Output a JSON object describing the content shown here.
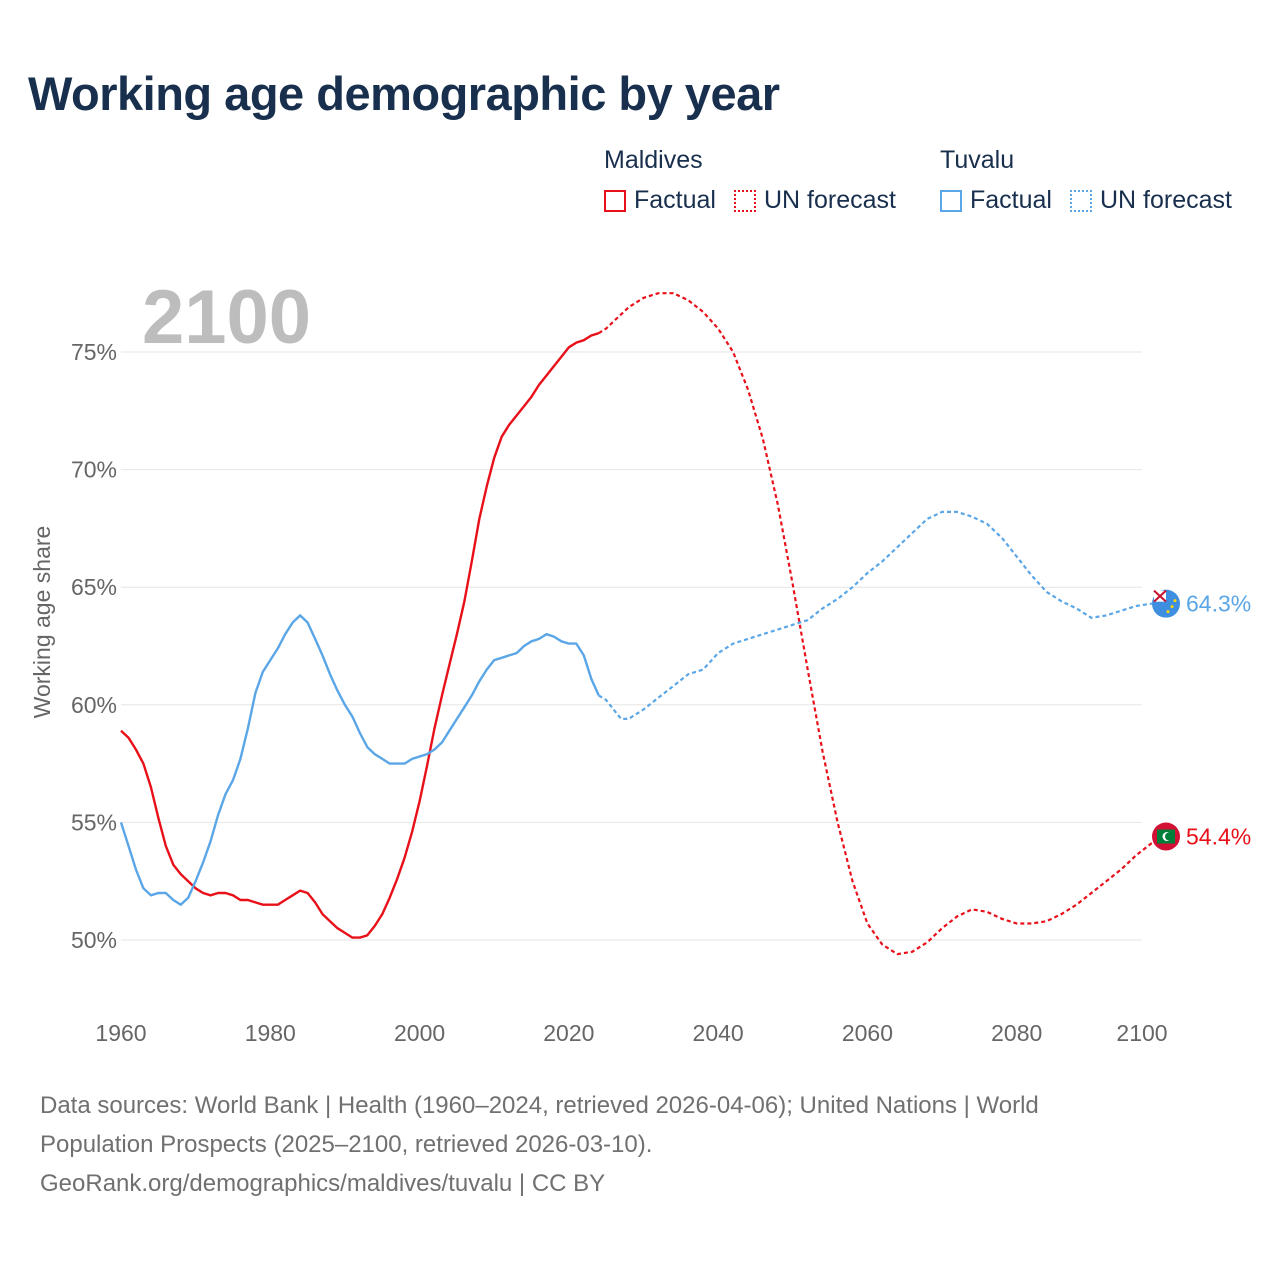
{
  "title": "Working age demographic by year",
  "legend": {
    "groups": [
      {
        "name": "Maldives",
        "factual_label": "Factual",
        "forecast_label": "UN forecast",
        "color": "#e8111a"
      },
      {
        "name": "Tuvalu",
        "factual_label": "Factual",
        "forecast_label": "UN forecast",
        "color": "#5aa6e6"
      }
    ]
  },
  "footer": {
    "line1": "Data sources: World Bank | Health (1960–2024, retrieved 2026-04-06); United Nations | World",
    "line2": "Population Prospects (2025–2100, retrieved 2026-03-10).",
    "line3": "GeoRank.org/demographics/maldives/tuvalu | CC BY"
  },
  "chart_data": {
    "type": "line",
    "title": "Working age demographic by year",
    "xlabel": "",
    "ylabel": "Working age share",
    "year_watermark": "2100",
    "xlim": [
      1960,
      2100
    ],
    "ylim": [
      47,
      77.5
    ],
    "x_ticks": [
      1960,
      1980,
      2000,
      2020,
      2040,
      2060,
      2080,
      2100
    ],
    "x_tick_labels": [
      "1960",
      "1980",
      "2000",
      "2020",
      "2040",
      "2060",
      "2080",
      "2100"
    ],
    "y_ticks": [
      50,
      55,
      60,
      65,
      70,
      75
    ],
    "y_tick_labels": [
      "50%",
      "55%",
      "60%",
      "65%",
      "70%",
      "75%"
    ],
    "grid": true,
    "factual_end_year": 2024,
    "series": [
      {
        "name": "Maldives",
        "color": "#e8111a",
        "end_label": "54.4%",
        "flag_icon": "maldives-flag-icon",
        "points": [
          [
            1960,
            58.9
          ],
          [
            1961,
            58.6
          ],
          [
            1962,
            58.1
          ],
          [
            1963,
            57.5
          ],
          [
            1964,
            56.5
          ],
          [
            1965,
            55.2
          ],
          [
            1966,
            54.0
          ],
          [
            1967,
            53.2
          ],
          [
            1968,
            52.8
          ],
          [
            1969,
            52.5
          ],
          [
            1970,
            52.2
          ],
          [
            1971,
            52.0
          ],
          [
            1972,
            51.9
          ],
          [
            1973,
            52.0
          ],
          [
            1974,
            52.0
          ],
          [
            1975,
            51.9
          ],
          [
            1976,
            51.7
          ],
          [
            1977,
            51.7
          ],
          [
            1978,
            51.6
          ],
          [
            1979,
            51.5
          ],
          [
            1980,
            51.5
          ],
          [
            1981,
            51.5
          ],
          [
            1982,
            51.7
          ],
          [
            1983,
            51.9
          ],
          [
            1984,
            52.1
          ],
          [
            1985,
            52.0
          ],
          [
            1986,
            51.6
          ],
          [
            1987,
            51.1
          ],
          [
            1988,
            50.8
          ],
          [
            1989,
            50.5
          ],
          [
            1990,
            50.3
          ],
          [
            1991,
            50.1
          ],
          [
            1992,
            50.1
          ],
          [
            1993,
            50.2
          ],
          [
            1994,
            50.6
          ],
          [
            1995,
            51.1
          ],
          [
            1996,
            51.8
          ],
          [
            1997,
            52.6
          ],
          [
            1998,
            53.5
          ],
          [
            1999,
            54.6
          ],
          [
            2000,
            55.9
          ],
          [
            2001,
            57.4
          ],
          [
            2002,
            59.0
          ],
          [
            2003,
            60.4
          ],
          [
            2004,
            61.7
          ],
          [
            2005,
            63.0
          ],
          [
            2006,
            64.4
          ],
          [
            2007,
            66.1
          ],
          [
            2008,
            67.9
          ],
          [
            2009,
            69.3
          ],
          [
            2010,
            70.5
          ],
          [
            2011,
            71.4
          ],
          [
            2012,
            71.9
          ],
          [
            2013,
            72.3
          ],
          [
            2014,
            72.7
          ],
          [
            2015,
            73.1
          ],
          [
            2016,
            73.6
          ],
          [
            2017,
            74.0
          ],
          [
            2018,
            74.4
          ],
          [
            2019,
            74.8
          ],
          [
            2020,
            75.2
          ],
          [
            2021,
            75.4
          ],
          [
            2022,
            75.5
          ],
          [
            2023,
            75.7
          ],
          [
            2024,
            75.8
          ],
          [
            2025,
            76.0
          ],
          [
            2026,
            76.3
          ],
          [
            2027,
            76.6
          ],
          [
            2028,
            76.9
          ],
          [
            2029,
            77.1
          ],
          [
            2030,
            77.3
          ],
          [
            2032,
            77.5
          ],
          [
            2034,
            77.5
          ],
          [
            2036,
            77.2
          ],
          [
            2038,
            76.7
          ],
          [
            2040,
            76.0
          ],
          [
            2042,
            75.0
          ],
          [
            2044,
            73.4
          ],
          [
            2046,
            71.3
          ],
          [
            2048,
            68.5
          ],
          [
            2050,
            65.1
          ],
          [
            2052,
            61.5
          ],
          [
            2054,
            58.0
          ],
          [
            2056,
            55.0
          ],
          [
            2058,
            52.5
          ],
          [
            2060,
            50.7
          ],
          [
            2062,
            49.8
          ],
          [
            2064,
            49.4
          ],
          [
            2066,
            49.5
          ],
          [
            2068,
            49.9
          ],
          [
            2070,
            50.5
          ],
          [
            2072,
            51.0
          ],
          [
            2074,
            51.3
          ],
          [
            2076,
            51.2
          ],
          [
            2078,
            50.9
          ],
          [
            2080,
            50.7
          ],
          [
            2082,
            50.7
          ],
          [
            2084,
            50.8
          ],
          [
            2086,
            51.1
          ],
          [
            2088,
            51.5
          ],
          [
            2090,
            52.0
          ],
          [
            2092,
            52.5
          ],
          [
            2094,
            53.0
          ],
          [
            2096,
            53.6
          ],
          [
            2098,
            54.1
          ],
          [
            2100,
            54.4
          ]
        ]
      },
      {
        "name": "Tuvalu",
        "color": "#5aa6e6",
        "end_label": "64.3%",
        "flag_icon": "tuvalu-flag-icon",
        "points": [
          [
            1960,
            55.0
          ],
          [
            1961,
            54.0
          ],
          [
            1962,
            53.0
          ],
          [
            1963,
            52.2
          ],
          [
            1964,
            51.9
          ],
          [
            1965,
            52.0
          ],
          [
            1966,
            52.0
          ],
          [
            1967,
            51.7
          ],
          [
            1968,
            51.5
          ],
          [
            1969,
            51.8
          ],
          [
            1970,
            52.5
          ],
          [
            1971,
            53.3
          ],
          [
            1972,
            54.2
          ],
          [
            1973,
            55.3
          ],
          [
            1974,
            56.2
          ],
          [
            1975,
            56.8
          ],
          [
            1976,
            57.7
          ],
          [
            1977,
            59.0
          ],
          [
            1978,
            60.5
          ],
          [
            1979,
            61.4
          ],
          [
            1980,
            61.9
          ],
          [
            1981,
            62.4
          ],
          [
            1982,
            63.0
          ],
          [
            1983,
            63.5
          ],
          [
            1984,
            63.8
          ],
          [
            1985,
            63.5
          ],
          [
            1986,
            62.8
          ],
          [
            1987,
            62.1
          ],
          [
            1988,
            61.3
          ],
          [
            1989,
            60.6
          ],
          [
            1990,
            60.0
          ],
          [
            1991,
            59.5
          ],
          [
            1992,
            58.8
          ],
          [
            1993,
            58.2
          ],
          [
            1994,
            57.9
          ],
          [
            1995,
            57.7
          ],
          [
            1996,
            57.5
          ],
          [
            1997,
            57.5
          ],
          [
            1998,
            57.5
          ],
          [
            1999,
            57.7
          ],
          [
            2000,
            57.8
          ],
          [
            2001,
            57.9
          ],
          [
            2002,
            58.1
          ],
          [
            2003,
            58.4
          ],
          [
            2004,
            58.9
          ],
          [
            2005,
            59.4
          ],
          [
            2006,
            59.9
          ],
          [
            2007,
            60.4
          ],
          [
            2008,
            61.0
          ],
          [
            2009,
            61.5
          ],
          [
            2010,
            61.9
          ],
          [
            2011,
            62.0
          ],
          [
            2012,
            62.1
          ],
          [
            2013,
            62.2
          ],
          [
            2014,
            62.5
          ],
          [
            2015,
            62.7
          ],
          [
            2016,
            62.8
          ],
          [
            2017,
            63.0
          ],
          [
            2018,
            62.9
          ],
          [
            2019,
            62.7
          ],
          [
            2020,
            62.6
          ],
          [
            2021,
            62.6
          ],
          [
            2022,
            62.1
          ],
          [
            2023,
            61.1
          ],
          [
            2024,
            60.4
          ],
          [
            2025,
            60.2
          ],
          [
            2026,
            59.8
          ],
          [
            2027,
            59.4
          ],
          [
            2028,
            59.4
          ],
          [
            2029,
            59.6
          ],
          [
            2030,
            59.8
          ],
          [
            2032,
            60.3
          ],
          [
            2034,
            60.8
          ],
          [
            2036,
            61.3
          ],
          [
            2038,
            61.5
          ],
          [
            2040,
            62.2
          ],
          [
            2042,
            62.6
          ],
          [
            2044,
            62.8
          ],
          [
            2046,
            63.0
          ],
          [
            2048,
            63.2
          ],
          [
            2050,
            63.4
          ],
          [
            2052,
            63.6
          ],
          [
            2054,
            64.1
          ],
          [
            2056,
            64.5
          ],
          [
            2058,
            65.0
          ],
          [
            2060,
            65.6
          ],
          [
            2062,
            66.1
          ],
          [
            2064,
            66.7
          ],
          [
            2066,
            67.3
          ],
          [
            2068,
            67.9
          ],
          [
            2070,
            68.2
          ],
          [
            2072,
            68.2
          ],
          [
            2074,
            68.0
          ],
          [
            2076,
            67.7
          ],
          [
            2078,
            67.1
          ],
          [
            2080,
            66.3
          ],
          [
            2082,
            65.5
          ],
          [
            2084,
            64.8
          ],
          [
            2086,
            64.4
          ],
          [
            2088,
            64.1
          ],
          [
            2090,
            63.7
          ],
          [
            2092,
            63.8
          ],
          [
            2094,
            64.0
          ],
          [
            2096,
            64.2
          ],
          [
            2098,
            64.3
          ],
          [
            2100,
            64.3
          ]
        ]
      }
    ]
  }
}
